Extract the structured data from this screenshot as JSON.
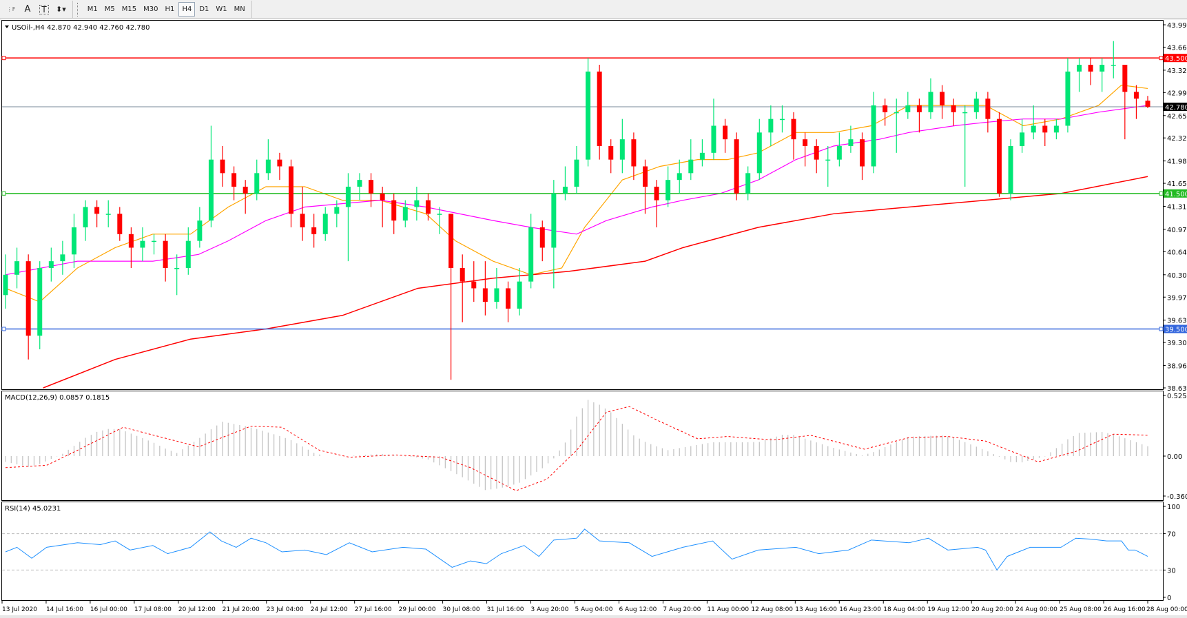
{
  "toolbar": {
    "tools": [
      {
        "name": "grid-lines-icon",
        "glyph": "⋮F"
      },
      {
        "name": "text-icon",
        "glyph": "A"
      },
      {
        "name": "text-label-icon",
        "glyph": "T"
      },
      {
        "name": "arrows-icon",
        "glyph": "⬍▾"
      }
    ],
    "timeframes": [
      "M1",
      "M5",
      "M15",
      "M30",
      "H1",
      "H4",
      "D1",
      "W1",
      "MN"
    ],
    "active_timeframe": "H4"
  },
  "chart": {
    "header": "USOil-,H4  42.870 42.940 42.760 42.780",
    "colors": {
      "bull": "#00e676",
      "bear": "#ff0000",
      "ma_fast": "#ffa500",
      "ma_mid": "#ff00ff",
      "ma_slow": "#ff0000",
      "resistance": "#ff0000",
      "support": "#22bb22",
      "low_level": "#3366dd",
      "price_line": "#778899",
      "macd_hist": "#c0c0c0",
      "macd_signal": "#ff0000",
      "rsi": "#1e90ff"
    },
    "price_axis": [
      "43.990",
      "43.660",
      "43.320",
      "42.990",
      "42.650",
      "42.320",
      "41.980",
      "41.650",
      "41.310",
      "40.970",
      "40.640",
      "40.300",
      "39.970",
      "39.630",
      "39.300",
      "38.960",
      "38.630"
    ],
    "levels": [
      {
        "label": "43.500",
        "value": 43.5,
        "role": "resistance"
      },
      {
        "label": "41.500",
        "value": 41.5,
        "role": "support"
      },
      {
        "label": "39.500",
        "value": 39.5,
        "role": "low_level"
      }
    ],
    "current_price": {
      "label": "42.780",
      "value": 42.78
    },
    "time_axis": [
      "13 Jul 2020",
      "14 Jul 16:00",
      "16 Jul 00:00",
      "17 Jul 08:00",
      "20 Jul 12:00",
      "21 Jul 20:00",
      "23 Jul 04:00",
      "24 Jul 12:00",
      "27 Jul 16:00",
      "29 Jul 00:00",
      "30 Jul 08:00",
      "31 Jul 16:00",
      "3 Aug 20:00",
      "5 Aug 04:00",
      "6 Aug 12:00",
      "7 Aug 20:00",
      "11 Aug 00:00",
      "12 Aug 08:00",
      "13 Aug 16:00",
      "16 Aug 23:00",
      "18 Aug 04:00",
      "19 Aug 12:00",
      "20 Aug 20:00",
      "24 Aug 00:00",
      "25 Aug 08:00",
      "26 Aug 16:00",
      "28 Aug 00:00"
    ]
  },
  "macd": {
    "label": "MACD(12,26,9) 0.0857 0.1815",
    "axis": [
      "0.5257",
      "0.00",
      "-0.3603"
    ]
  },
  "rsi": {
    "label": "RSI(14) 45.0231",
    "axis": [
      "100",
      "70",
      "30",
      "0"
    ]
  },
  "chart_data": {
    "type": "candlestick",
    "symbol": "USOil-",
    "timeframe": "H4",
    "ylim": [
      38.63,
      43.99
    ],
    "ohlc": [
      [
        40.0,
        40.6,
        39.8,
        40.3
      ],
      [
        40.3,
        40.7,
        40.1,
        40.5
      ],
      [
        40.5,
        40.6,
        39.05,
        39.4
      ],
      [
        39.4,
        40.5,
        39.2,
        40.4
      ],
      [
        40.4,
        40.7,
        40.2,
        40.5
      ],
      [
        40.5,
        40.8,
        40.3,
        40.6
      ],
      [
        40.6,
        41.2,
        40.4,
        41.0
      ],
      [
        41.0,
        41.4,
        40.8,
        41.3
      ],
      [
        41.3,
        41.4,
        41.0,
        41.2
      ],
      [
        41.2,
        41.4,
        41.0,
        41.2
      ],
      [
        41.2,
        41.3,
        40.8,
        40.9
      ],
      [
        40.9,
        41.0,
        40.4,
        40.7
      ],
      [
        40.7,
        41.0,
        40.5,
        40.8
      ],
      [
        40.8,
        40.9,
        40.6,
        40.8
      ],
      [
        40.8,
        40.9,
        40.2,
        40.4
      ],
      [
        40.4,
        40.6,
        40.0,
        40.4
      ],
      [
        40.4,
        41.0,
        40.3,
        40.8
      ],
      [
        40.8,
        41.3,
        40.7,
        41.1
      ],
      [
        41.1,
        42.5,
        41.0,
        42.0
      ],
      [
        42.0,
        42.2,
        41.6,
        41.8
      ],
      [
        41.8,
        41.9,
        41.4,
        41.6
      ],
      [
        41.6,
        41.7,
        41.2,
        41.5
      ],
      [
        41.5,
        42.0,
        41.4,
        41.8
      ],
      [
        41.8,
        42.3,
        41.7,
        42.0
      ],
      [
        42.0,
        42.1,
        41.7,
        41.9
      ],
      [
        41.9,
        42.0,
        41.0,
        41.2
      ],
      [
        41.2,
        41.6,
        40.8,
        41.0
      ],
      [
        41.0,
        41.2,
        40.7,
        40.9
      ],
      [
        40.9,
        41.3,
        40.8,
        41.2
      ],
      [
        41.2,
        41.4,
        41.0,
        41.3
      ],
      [
        41.3,
        41.8,
        40.5,
        41.6
      ],
      [
        41.6,
        41.8,
        41.4,
        41.7
      ],
      [
        41.7,
        41.8,
        41.3,
        41.5
      ],
      [
        41.5,
        41.6,
        41.0,
        41.4
      ],
      [
        41.4,
        41.5,
        40.9,
        41.1
      ],
      [
        41.1,
        41.4,
        41.0,
        41.3
      ],
      [
        41.3,
        41.6,
        41.1,
        41.4
      ],
      [
        41.4,
        41.5,
        41.1,
        41.2
      ],
      [
        41.2,
        41.3,
        40.9,
        41.2
      ],
      [
        41.2,
        41.2,
        38.75,
        40.4
      ],
      [
        40.4,
        40.6,
        39.6,
        40.2
      ],
      [
        40.2,
        40.5,
        39.9,
        40.1
      ],
      [
        40.1,
        40.5,
        39.7,
        39.9
      ],
      [
        39.9,
        40.4,
        39.8,
        40.1
      ],
      [
        40.1,
        40.2,
        39.6,
        39.8
      ],
      [
        39.8,
        40.4,
        39.7,
        40.2
      ],
      [
        40.2,
        41.2,
        40.1,
        41.0
      ],
      [
        41.0,
        41.1,
        40.5,
        40.7
      ],
      [
        40.7,
        41.7,
        40.1,
        41.5
      ],
      [
        41.5,
        41.9,
        41.4,
        41.6
      ],
      [
        41.6,
        42.2,
        41.5,
        42.0
      ],
      [
        42.0,
        43.5,
        41.9,
        43.3
      ],
      [
        43.3,
        43.4,
        42.0,
        42.2
      ],
      [
        42.2,
        42.3,
        41.8,
        42.0
      ],
      [
        42.0,
        42.6,
        41.8,
        42.3
      ],
      [
        42.3,
        42.4,
        41.7,
        41.9
      ],
      [
        41.9,
        42.0,
        41.2,
        41.6
      ],
      [
        41.6,
        41.7,
        41.0,
        41.4
      ],
      [
        41.4,
        41.9,
        41.3,
        41.7
      ],
      [
        41.7,
        42.0,
        41.5,
        41.8
      ],
      [
        41.8,
        42.3,
        41.7,
        42.0
      ],
      [
        42.0,
        42.3,
        41.9,
        42.1
      ],
      [
        42.1,
        42.9,
        42.0,
        42.5
      ],
      [
        42.5,
        42.6,
        42.1,
        42.3
      ],
      [
        42.3,
        42.4,
        41.4,
        41.5
      ],
      [
        41.5,
        41.9,
        41.4,
        41.8
      ],
      [
        41.8,
        42.6,
        41.7,
        42.4
      ],
      [
        42.4,
        42.8,
        42.2,
        42.6
      ],
      [
        42.6,
        42.8,
        42.4,
        42.6
      ],
      [
        42.6,
        42.7,
        42.0,
        42.3
      ],
      [
        42.3,
        42.4,
        41.9,
        42.2
      ],
      [
        42.2,
        42.3,
        41.8,
        42.0
      ],
      [
        42.0,
        42.2,
        41.6,
        42.0
      ],
      [
        42.0,
        42.4,
        41.9,
        42.2
      ],
      [
        42.2,
        42.5,
        42.1,
        42.3
      ],
      [
        42.3,
        42.4,
        41.7,
        41.9
      ],
      [
        41.9,
        43.0,
        41.8,
        42.8
      ],
      [
        42.8,
        42.9,
        42.5,
        42.7
      ],
      [
        42.7,
        42.9,
        42.1,
        42.7
      ],
      [
        42.7,
        43.0,
        42.6,
        42.8
      ],
      [
        42.8,
        42.9,
        42.4,
        42.7
      ],
      [
        42.7,
        43.2,
        42.6,
        43.0
      ],
      [
        43.0,
        43.1,
        42.6,
        42.8
      ],
      [
        42.8,
        42.9,
        42.5,
        42.7
      ],
      [
        42.7,
        42.8,
        41.6,
        42.7
      ],
      [
        42.7,
        43.0,
        42.6,
        42.9
      ],
      [
        42.9,
        43.0,
        42.4,
        42.6
      ],
      [
        42.6,
        42.7,
        41.45,
        41.5
      ],
      [
        41.5,
        42.3,
        41.4,
        42.2
      ],
      [
        42.2,
        42.6,
        42.1,
        42.4
      ],
      [
        42.4,
        42.8,
        42.3,
        42.5
      ],
      [
        42.5,
        42.6,
        42.2,
        42.4
      ],
      [
        42.4,
        42.6,
        42.3,
        42.5
      ],
      [
        42.5,
        43.5,
        42.4,
        43.3
      ],
      [
        43.3,
        43.5,
        43.0,
        43.4
      ],
      [
        43.4,
        43.5,
        43.1,
        43.3
      ],
      [
        43.3,
        43.5,
        43.0,
        43.4
      ],
      [
        43.4,
        43.75,
        43.2,
        43.4
      ],
      [
        43.4,
        43.4,
        42.3,
        43.0
      ],
      [
        43.0,
        43.1,
        42.6,
        42.9
      ],
      [
        42.87,
        42.94,
        42.76,
        42.78
      ]
    ],
    "ma_fast": [
      [
        0,
        40.1
      ],
      [
        3,
        39.9
      ],
      [
        6.3,
        40.4
      ],
      [
        9.6,
        40.7
      ],
      [
        12.9,
        40.9
      ],
      [
        16.2,
        40.9
      ],
      [
        19.5,
        41.3
      ],
      [
        22.8,
        41.6
      ],
      [
        26.2,
        41.6
      ],
      [
        29.5,
        41.4
      ],
      [
        32.8,
        41.4
      ],
      [
        36.8,
        41.2
      ],
      [
        39.4,
        40.8
      ],
      [
        42.7,
        40.5
      ],
      [
        46,
        40.3
      ],
      [
        48.7,
        40.4
      ],
      [
        50.7,
        41.0
      ],
      [
        54,
        41.7
      ],
      [
        57.3,
        41.9
      ],
      [
        60.6,
        42.0
      ],
      [
        63.2,
        42.0
      ],
      [
        65.9,
        42.1
      ],
      [
        69.2,
        42.4
      ],
      [
        72.5,
        42.4
      ],
      [
        75.8,
        42.5
      ],
      [
        79.1,
        42.8
      ],
      [
        82.5,
        42.8
      ],
      [
        85.8,
        42.8
      ],
      [
        89.1,
        42.5
      ],
      [
        92.4,
        42.6
      ],
      [
        95.7,
        42.8
      ],
      [
        97.7,
        43.1
      ],
      [
        100,
        43.05
      ]
    ],
    "ma_mid": [
      [
        0,
        40.3
      ],
      [
        6.3,
        40.5
      ],
      [
        12.9,
        40.5
      ],
      [
        16.9,
        40.6
      ],
      [
        19.5,
        40.8
      ],
      [
        22.8,
        41.1
      ],
      [
        26.2,
        41.3
      ],
      [
        32.8,
        41.4
      ],
      [
        36.8,
        41.3
      ],
      [
        42.7,
        41.1
      ],
      [
        46,
        41.0
      ],
      [
        50,
        40.9
      ],
      [
        52.6,
        41.1
      ],
      [
        56.6,
        41.3
      ],
      [
        59.3,
        41.4
      ],
      [
        62.6,
        41.5
      ],
      [
        65.9,
        41.7
      ],
      [
        69.2,
        42.0
      ],
      [
        72.5,
        42.2
      ],
      [
        76.5,
        42.3
      ],
      [
        79.1,
        42.4
      ],
      [
        83.1,
        42.5
      ],
      [
        85.8,
        42.55
      ],
      [
        89.1,
        42.6
      ],
      [
        92.4,
        42.6
      ],
      [
        95.7,
        42.7
      ],
      [
        100,
        42.8
      ]
    ],
    "ma_slow": [
      [
        3.3,
        38.63
      ],
      [
        9.6,
        39.05
      ],
      [
        16.2,
        39.35
      ],
      [
        22.8,
        39.5
      ],
      [
        29.5,
        39.7
      ],
      [
        36.1,
        40.1
      ],
      [
        42.7,
        40.25
      ],
      [
        49.3,
        40.35
      ],
      [
        56,
        40.5
      ],
      [
        59.3,
        40.7
      ],
      [
        65.9,
        41.0
      ],
      [
        72.5,
        41.2
      ],
      [
        79.1,
        41.3
      ],
      [
        85.8,
        41.4
      ],
      [
        92.4,
        41.5
      ],
      [
        100,
        41.75
      ]
    ],
    "macd_hist": [
      [
        0,
        -0.05
      ],
      [
        2.3,
        -0.1
      ],
      [
        5,
        0.02
      ],
      [
        7.6,
        0.2
      ],
      [
        9.6,
        0.25
      ],
      [
        12.9,
        0.12
      ],
      [
        14.9,
        0.02
      ],
      [
        16.9,
        0.15
      ],
      [
        18.9,
        0.3
      ],
      [
        21.5,
        0.25
      ],
      [
        24.8,
        0.15
      ],
      [
        27.5,
        0.0
      ],
      [
        30.1,
        0.0
      ],
      [
        32.8,
        0.02
      ],
      [
        36.8,
        -0.02
      ],
      [
        39.4,
        -0.15
      ],
      [
        42.1,
        -0.3
      ],
      [
        44.7,
        -0.25
      ],
      [
        47.4,
        -0.08
      ],
      [
        48.7,
        0.05
      ],
      [
        50.7,
        0.5
      ],
      [
        52.6,
        0.42
      ],
      [
        55.3,
        0.15
      ],
      [
        57.9,
        0.05
      ],
      [
        61.9,
        0.12
      ],
      [
        65.9,
        0.12
      ],
      [
        68.5,
        0.2
      ],
      [
        72.5,
        0.07
      ],
      [
        75.2,
        0.0
      ],
      [
        79.1,
        0.17
      ],
      [
        82.5,
        0.18
      ],
      [
        85.8,
        0.05
      ],
      [
        88.4,
        -0.07
      ],
      [
        91.1,
        0.0
      ],
      [
        93.7,
        0.2
      ],
      [
        96.4,
        0.21
      ],
      [
        100,
        0.0857
      ]
    ],
    "macd_signal": [
      [
        0,
        -0.1
      ],
      [
        3.6,
        -0.08
      ],
      [
        6.3,
        0.05
      ],
      [
        10.3,
        0.25
      ],
      [
        14.2,
        0.15
      ],
      [
        16.9,
        0.08
      ],
      [
        21.5,
        0.26
      ],
      [
        24.2,
        0.25
      ],
      [
        27.5,
        0.05
      ],
      [
        30.1,
        -0.01
      ],
      [
        34.1,
        0.01
      ],
      [
        38.1,
        -0.01
      ],
      [
        40.7,
        -0.1
      ],
      [
        44.7,
        -0.3
      ],
      [
        47.4,
        -0.2
      ],
      [
        50,
        0.05
      ],
      [
        52.6,
        0.38
      ],
      [
        54.6,
        0.43
      ],
      [
        57.3,
        0.3
      ],
      [
        60.6,
        0.15
      ],
      [
        63.2,
        0.17
      ],
      [
        67.2,
        0.14
      ],
      [
        70.5,
        0.18
      ],
      [
        75.2,
        0.06
      ],
      [
        79.1,
        0.16
      ],
      [
        82.5,
        0.17
      ],
      [
        85.8,
        0.13
      ],
      [
        90.4,
        -0.05
      ],
      [
        93.7,
        0.04
      ],
      [
        97,
        0.19
      ],
      [
        100,
        0.1815
      ]
    ],
    "rsi": [
      [
        0,
        50
      ],
      [
        1,
        55
      ],
      [
        2.3,
        43
      ],
      [
        3.6,
        55
      ],
      [
        6.3,
        60
      ],
      [
        8.3,
        58
      ],
      [
        9.6,
        62
      ],
      [
        10.9,
        52
      ],
      [
        12.9,
        57
      ],
      [
        14.2,
        48
      ],
      [
        16.2,
        55
      ],
      [
        17.9,
        72
      ],
      [
        18.9,
        62
      ],
      [
        20.2,
        55
      ],
      [
        21.5,
        65
      ],
      [
        22.8,
        60
      ],
      [
        24.2,
        50
      ],
      [
        26.2,
        52
      ],
      [
        28.1,
        47
      ],
      [
        30.1,
        60
      ],
      [
        32.1,
        50
      ],
      [
        34.8,
        55
      ],
      [
        36.8,
        53
      ],
      [
        39.1,
        33
      ],
      [
        40.7,
        40
      ],
      [
        42.1,
        37
      ],
      [
        43.4,
        48
      ],
      [
        45.4,
        57
      ],
      [
        46.7,
        45
      ],
      [
        48,
        63
      ],
      [
        50,
        65
      ],
      [
        50.7,
        75
      ],
      [
        52,
        62
      ],
      [
        54.6,
        60
      ],
      [
        56.6,
        45
      ],
      [
        59.3,
        55
      ],
      [
        61.9,
        62
      ],
      [
        63.6,
        42
      ],
      [
        65.9,
        52
      ],
      [
        69.2,
        55
      ],
      [
        71.2,
        48
      ],
      [
        73.8,
        52
      ],
      [
        75.8,
        63
      ],
      [
        79.1,
        60
      ],
      [
        80.8,
        65
      ],
      [
        82.5,
        52
      ],
      [
        85.1,
        55
      ],
      [
        85.8,
        52
      ],
      [
        86.8,
        30
      ],
      [
        87.7,
        45
      ],
      [
        89.7,
        55
      ],
      [
        92.4,
        55
      ],
      [
        93.7,
        65
      ],
      [
        95,
        64
      ],
      [
        96.4,
        62
      ],
      [
        97.7,
        62
      ],
      [
        98.3,
        52
      ],
      [
        98.9,
        52
      ],
      [
        100,
        45.02
      ]
    ],
    "rsi_levels": [
      70,
      30
    ],
    "macd_ylim": [
      -0.3603,
      0.5257
    ],
    "rsi_ylim": [
      0,
      100
    ]
  }
}
